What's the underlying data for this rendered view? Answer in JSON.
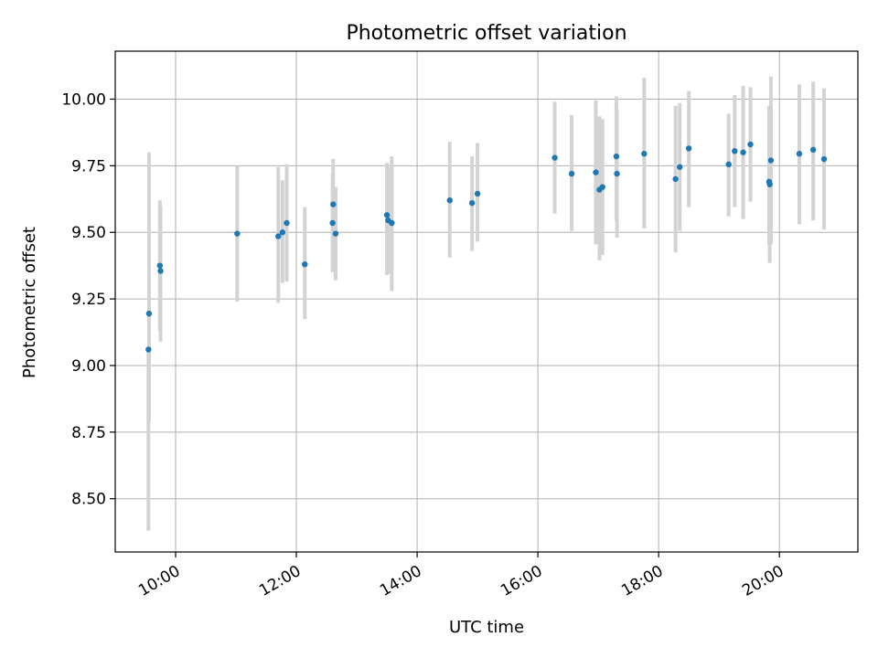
{
  "chart_data": {
    "type": "scatter",
    "title": "Photometric offset variation",
    "xlabel": "UTC time",
    "ylabel": "Photometric offset",
    "xlim": [
      9.0,
      21.3
    ],
    "ylim": [
      8.3,
      10.18
    ],
    "x_ticks": [
      {
        "value": 10,
        "label": "10:00"
      },
      {
        "value": 12,
        "label": "12:00"
      },
      {
        "value": 14,
        "label": "14:00"
      },
      {
        "value": 16,
        "label": "16:00"
      },
      {
        "value": 18,
        "label": "18:00"
      },
      {
        "value": 20,
        "label": "20:00"
      }
    ],
    "y_ticks": [
      {
        "value": 8.5,
        "label": "8.50"
      },
      {
        "value": 8.75,
        "label": "8.75"
      },
      {
        "value": 9.0,
        "label": "9.00"
      },
      {
        "value": 9.25,
        "label": "9.25"
      },
      {
        "value": 9.5,
        "label": "9.50"
      },
      {
        "value": 9.75,
        "label": "9.75"
      },
      {
        "value": 10.0,
        "label": "10.00"
      }
    ],
    "grid": true,
    "marker_color": "#1f77b4",
    "errorbar_color": "#d3d3d3",
    "points": [
      {
        "x": 9.56,
        "y": 9.195,
        "lo": 8.79,
        "hi": 9.8
      },
      {
        "x": 9.55,
        "y": 9.06,
        "lo": 8.38,
        "hi": 9.06
      },
      {
        "x": 9.74,
        "y": 9.375,
        "lo": 9.13,
        "hi": 9.62
      },
      {
        "x": 9.75,
        "y": 9.355,
        "lo": 9.09,
        "hi": 9.6
      },
      {
        "x": 11.02,
        "y": 9.495,
        "lo": 9.24,
        "hi": 9.75
      },
      {
        "x": 11.7,
        "y": 9.485,
        "lo": 9.235,
        "hi": 9.745
      },
      {
        "x": 11.77,
        "y": 9.5,
        "lo": 9.31,
        "hi": 9.695
      },
      {
        "x": 11.84,
        "y": 9.535,
        "lo": 9.315,
        "hi": 9.755
      },
      {
        "x": 12.14,
        "y": 9.38,
        "lo": 9.175,
        "hi": 9.595
      },
      {
        "x": 12.6,
        "y": 9.535,
        "lo": 9.35,
        "hi": 9.72
      },
      {
        "x": 12.61,
        "y": 9.605,
        "lo": 9.43,
        "hi": 9.775
      },
      {
        "x": 12.65,
        "y": 9.495,
        "lo": 9.32,
        "hi": 9.67
      },
      {
        "x": 13.5,
        "y": 9.565,
        "lo": 9.34,
        "hi": 9.76
      },
      {
        "x": 13.52,
        "y": 9.545,
        "lo": 9.345,
        "hi": 9.745
      },
      {
        "x": 13.58,
        "y": 9.535,
        "lo": 9.28,
        "hi": 9.785
      },
      {
        "x": 14.54,
        "y": 9.62,
        "lo": 9.405,
        "hi": 9.84
      },
      {
        "x": 14.91,
        "y": 9.61,
        "lo": 9.43,
        "hi": 9.785
      },
      {
        "x": 15.0,
        "y": 9.645,
        "lo": 9.465,
        "hi": 9.835
      },
      {
        "x": 16.28,
        "y": 9.78,
        "lo": 9.57,
        "hi": 9.99
      },
      {
        "x": 16.56,
        "y": 9.72,
        "lo": 9.505,
        "hi": 9.94
      },
      {
        "x": 16.96,
        "y": 9.725,
        "lo": 9.455,
        "hi": 9.995
      },
      {
        "x": 17.02,
        "y": 9.66,
        "lo": 9.395,
        "hi": 9.935
      },
      {
        "x": 17.07,
        "y": 9.67,
        "lo": 9.415,
        "hi": 9.925
      },
      {
        "x": 17.3,
        "y": 9.785,
        "lo": 9.545,
        "hi": 10.01
      },
      {
        "x": 17.31,
        "y": 9.72,
        "lo": 9.48,
        "hi": 9.96
      },
      {
        "x": 17.76,
        "y": 9.795,
        "lo": 9.515,
        "hi": 10.08
      },
      {
        "x": 18.28,
        "y": 9.7,
        "lo": 9.425,
        "hi": 9.975
      },
      {
        "x": 18.35,
        "y": 9.745,
        "lo": 9.505,
        "hi": 9.985
      },
      {
        "x": 18.5,
        "y": 9.815,
        "lo": 9.595,
        "hi": 10.03
      },
      {
        "x": 19.16,
        "y": 9.755,
        "lo": 9.56,
        "hi": 9.945
      },
      {
        "x": 19.26,
        "y": 9.805,
        "lo": 9.595,
        "hi": 10.015
      },
      {
        "x": 19.4,
        "y": 9.8,
        "lo": 9.55,
        "hi": 10.05
      },
      {
        "x": 19.52,
        "y": 9.83,
        "lo": 9.615,
        "hi": 10.045
      },
      {
        "x": 19.83,
        "y": 9.69,
        "lo": 9.45,
        "hi": 9.975
      },
      {
        "x": 19.84,
        "y": 9.68,
        "lo": 9.385,
        "hi": 9.975
      },
      {
        "x": 19.86,
        "y": 9.77,
        "lo": 9.455,
        "hi": 10.085
      },
      {
        "x": 20.33,
        "y": 9.795,
        "lo": 9.53,
        "hi": 10.055
      },
      {
        "x": 20.56,
        "y": 9.81,
        "lo": 9.545,
        "hi": 10.065
      },
      {
        "x": 20.74,
        "y": 9.775,
        "lo": 9.51,
        "hi": 10.04
      }
    ]
  }
}
